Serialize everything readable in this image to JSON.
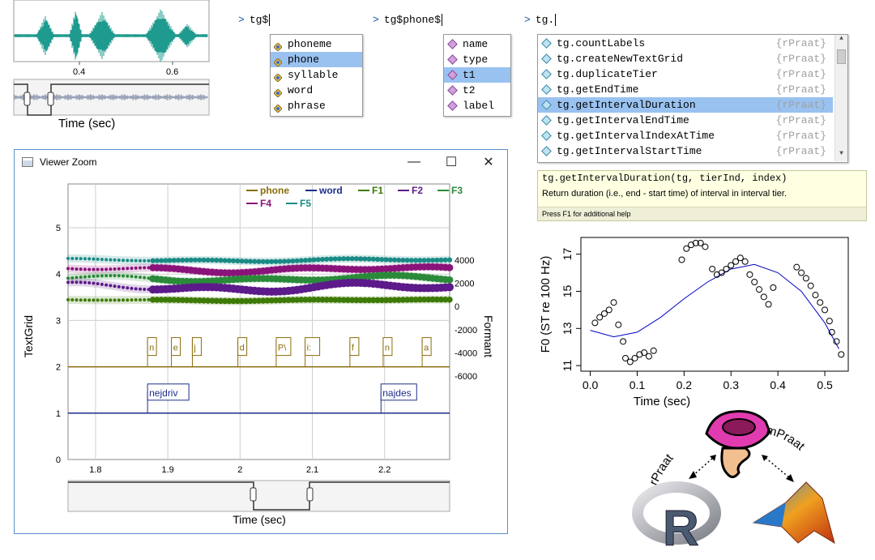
{
  "top_wave": {
    "ticks": [
      "0.4",
      "0.6"
    ],
    "xlabel": "Time (sec)"
  },
  "console1": {
    "prompt": ">",
    "text": "tg$",
    "items": [
      "phoneme",
      "phone",
      "syllable",
      "word",
      "phrase"
    ],
    "selected": 1
  },
  "console2": {
    "prompt": ">",
    "text": "tg$phone$",
    "items": [
      "name",
      "type",
      "t1",
      "t2",
      "label"
    ],
    "selected": 2
  },
  "console3": {
    "prompt": ">",
    "text": "tg.",
    "items": [
      "tg.countLabels",
      "tg.createNewTextGrid",
      "tg.duplicateTier",
      "tg.getEndTime",
      "tg.getIntervalDuration",
      "tg.getIntervalEndTime",
      "tg.getIntervalIndexAtTime",
      "tg.getIntervalStartTime"
    ],
    "source": "{rPraat}",
    "selected": 4
  },
  "tooltip": {
    "signature": "tg.getIntervalDuration(tg, tierInd, index)",
    "description": "Return duration (i.e., end - start time) of interval in interval tier.",
    "help": "Press F1 for additional help"
  },
  "viewer": {
    "title": "Viewer Zoom",
    "controls": {
      "minimize": "—",
      "maximize": "☐",
      "close": "✕"
    },
    "legend": [
      {
        "name": "phone",
        "color": "#8a6d0b"
      },
      {
        "name": "word",
        "color": "#1d2d8a"
      },
      {
        "name": "F1",
        "color": "#3d7a07"
      },
      {
        "name": "F2",
        "color": "#5c1a8a"
      },
      {
        "name": "F3",
        "color": "#2a8a3a"
      },
      {
        "name": "F4",
        "color": "#8a137a"
      },
      {
        "name": "F5",
        "color": "#1a8a85"
      }
    ],
    "left_ticks": [
      "0",
      "1",
      "2",
      "3",
      "4",
      "5"
    ],
    "right_ticks": [
      "4000",
      "2000",
      "0",
      "-2000",
      "-4000",
      "-6000"
    ],
    "x_ticks": [
      "1.8",
      "1.9",
      "2",
      "2.1",
      "2.2"
    ],
    "left_label": "TextGrid",
    "right_label": "Formant",
    "xlabel": "Time (sec)",
    "phones": [
      "n",
      "e",
      "j",
      "d",
      "P\\",
      "i:",
      "f",
      "n",
      "a"
    ],
    "words": [
      "nejdriv",
      "najdes"
    ]
  },
  "chart_data": {
    "type": "scatter",
    "xlabel": "Time (sec)",
    "ylabel": "F0 (ST re 100 Hz)",
    "xlim": [
      -0.02,
      0.55
    ],
    "ylim": [
      10.7,
      17.9
    ],
    "x_ticks": [
      "0.0",
      "0.1",
      "0.2",
      "0.3",
      "0.4",
      "0.5"
    ],
    "y_ticks": [
      "11",
      "13",
      "15",
      "17"
    ],
    "points": [
      [
        0.01,
        13.3
      ],
      [
        0.02,
        13.6
      ],
      [
        0.03,
        13.8
      ],
      [
        0.04,
        14.0
      ],
      [
        0.05,
        14.4
      ],
      [
        0.06,
        13.2
      ],
      [
        0.07,
        12.3
      ],
      [
        0.075,
        11.4
      ],
      [
        0.085,
        11.2
      ],
      [
        0.095,
        11.4
      ],
      [
        0.105,
        11.6
      ],
      [
        0.115,
        11.7
      ],
      [
        0.125,
        11.5
      ],
      [
        0.135,
        11.8
      ],
      [
        0.195,
        16.7
      ],
      [
        0.205,
        17.3
      ],
      [
        0.215,
        17.5
      ],
      [
        0.225,
        17.6
      ],
      [
        0.235,
        17.6
      ],
      [
        0.245,
        17.4
      ],
      [
        0.26,
        16.2
      ],
      [
        0.27,
        15.9
      ],
      [
        0.28,
        16.0
      ],
      [
        0.29,
        16.2
      ],
      [
        0.3,
        16.4
      ],
      [
        0.31,
        16.6
      ],
      [
        0.32,
        16.8
      ],
      [
        0.33,
        16.6
      ],
      [
        0.34,
        15.9
      ],
      [
        0.35,
        15.5
      ],
      [
        0.36,
        15.1
      ],
      [
        0.37,
        14.7
      ],
      [
        0.38,
        14.3
      ],
      [
        0.39,
        15.2
      ],
      [
        0.44,
        16.3
      ],
      [
        0.45,
        16.0
      ],
      [
        0.46,
        15.7
      ],
      [
        0.47,
        15.3
      ],
      [
        0.48,
        14.8
      ],
      [
        0.49,
        14.4
      ],
      [
        0.5,
        14.0
      ],
      [
        0.51,
        13.4
      ],
      [
        0.515,
        12.8
      ],
      [
        0.525,
        12.3
      ],
      [
        0.535,
        11.6
      ]
    ],
    "trend": [
      [
        0.0,
        12.9
      ],
      [
        0.05,
        12.55
      ],
      [
        0.1,
        12.8
      ],
      [
        0.15,
        13.6
      ],
      [
        0.2,
        14.6
      ],
      [
        0.25,
        15.5
      ],
      [
        0.3,
        16.2
      ],
      [
        0.35,
        16.45
      ],
      [
        0.4,
        16.0
      ],
      [
        0.45,
        15.0
      ],
      [
        0.5,
        13.3
      ],
      [
        0.53,
        11.9
      ]
    ]
  },
  "logo": {
    "left_arc": "rPraat",
    "right_arc": "mPraat",
    "r_letter": "R"
  }
}
